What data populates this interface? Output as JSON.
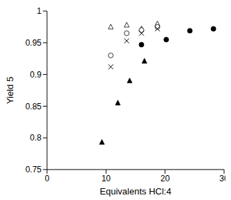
{
  "chart_data": {
    "type": "scatter",
    "x_label": "Equivalents HCl:4",
    "y_label": "Yield 5",
    "xlim": [
      0,
      30
    ],
    "xticks": [
      0,
      10,
      20,
      30
    ],
    "ylim": [
      0.75,
      1
    ],
    "yticks": [
      0.75,
      0.8,
      0.85,
      0.9,
      0.95,
      1
    ],
    "grid": false,
    "series": [
      {
        "marker": "triangle-open",
        "color": "#000000",
        "x": [
          10.8,
          13.5,
          16,
          18.7
        ],
        "values": [
          0.975,
          0.978,
          0.972,
          0.98
        ]
      },
      {
        "marker": "circle-open",
        "color": "#000000",
        "x": [
          10.8,
          13.5,
          16,
          18.7
        ],
        "values": [
          0.93,
          0.965,
          0.97,
          0.975
        ]
      },
      {
        "marker": "x",
        "color": "#000000",
        "x": [
          10.8,
          13.5,
          16,
          18.7
        ],
        "values": [
          0.912,
          0.953,
          0.965,
          0.972
        ]
      },
      {
        "marker": "circle",
        "color": "#000000",
        "x": [
          16,
          20.2,
          24.2,
          28.2
        ],
        "values": [
          0.947,
          0.955,
          0.969,
          0.972
        ]
      },
      {
        "marker": "triangle",
        "color": "#000000",
        "x": [
          9.3,
          12,
          14,
          16.5
        ],
        "values": [
          0.793,
          0.855,
          0.89,
          0.921
        ]
      }
    ]
  }
}
